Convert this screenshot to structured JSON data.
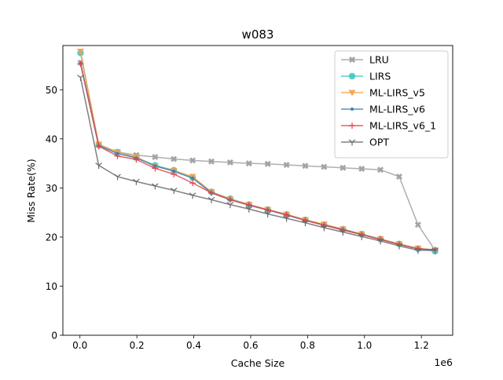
{
  "chart_data": {
    "type": "line",
    "title": "w083",
    "xlabel": "Cache Size",
    "ylabel": "Miss Rate(%)",
    "x_offset_label": "1e6",
    "xlim": [
      -0.06,
      1.31
    ],
    "ylim": [
      0,
      59
    ],
    "xticks": [
      0.0,
      0.2,
      0.4,
      0.6,
      0.8,
      1.0,
      1.2
    ],
    "xtick_labels": [
      "0.0",
      "0.2",
      "0.4",
      "0.6",
      "0.8",
      "1.0",
      "1.2"
    ],
    "yticks": [
      0,
      10,
      20,
      30,
      40,
      50
    ],
    "ytick_labels": [
      "0",
      "10",
      "20",
      "30",
      "40",
      "50"
    ],
    "legend_position": "top-right",
    "x": [
      0.002,
      0.066,
      0.132,
      0.198,
      0.264,
      0.33,
      0.396,
      0.462,
      0.528,
      0.594,
      0.66,
      0.726,
      0.792,
      0.858,
      0.924,
      0.99,
      1.056,
      1.122,
      1.188,
      1.248
    ],
    "series": [
      {
        "name": "LRU",
        "color": "#a0a0a0",
        "marker": "X",
        "values": [
          55.5,
          38.8,
          37.3,
          36.7,
          36.3,
          35.9,
          35.6,
          35.4,
          35.2,
          35.0,
          34.9,
          34.7,
          34.5,
          34.3,
          34.1,
          33.9,
          33.7,
          32.3,
          22.5,
          17.3
        ]
      },
      {
        "name": "LIRS",
        "color": "#3ec9c4",
        "marker": "o",
        "values": [
          57.5,
          38.7,
          37.3,
          36.2,
          34.6,
          33.6,
          32.1,
          29.2,
          27.8,
          26.6,
          25.6,
          24.6,
          23.5,
          22.5,
          21.6,
          20.6,
          19.6,
          18.6,
          17.6,
          17.1
        ]
      },
      {
        "name": "ML-LIRS_v5",
        "color": "#f5a04a",
        "marker": "v",
        "values": [
          57.8,
          38.9,
          37.3,
          36.3,
          34.4,
          33.5,
          32.3,
          29.2,
          27.7,
          26.6,
          25.6,
          24.6,
          23.5,
          22.6,
          21.6,
          20.6,
          19.6,
          18.6,
          17.7,
          17.3
        ]
      },
      {
        "name": "ML-LIRS_v6",
        "color": "#3d7fb5",
        "marker": ".",
        "values": [
          55.4,
          38.6,
          37.0,
          36.1,
          34.5,
          33.4,
          32.0,
          29.0,
          27.6,
          26.5,
          25.5,
          24.5,
          23.4,
          22.4,
          21.5,
          20.5,
          19.5,
          18.5,
          17.6,
          17.4
        ]
      },
      {
        "name": "ML-LIRS_v6_1",
        "color": "#e0454a",
        "marker": "+",
        "values": [
          55.3,
          38.5,
          36.5,
          35.8,
          34.0,
          32.8,
          31.0,
          29.0,
          27.6,
          26.5,
          25.5,
          24.5,
          23.4,
          22.4,
          21.4,
          20.5,
          19.5,
          18.5,
          17.6,
          17.4
        ]
      },
      {
        "name": "OPT",
        "color": "#6a6a6a",
        "marker": "1",
        "values": [
          52.5,
          34.6,
          32.3,
          31.3,
          30.4,
          29.5,
          28.5,
          27.6,
          26.6,
          25.7,
          24.7,
          23.8,
          22.9,
          21.9,
          21.0,
          20.1,
          19.2,
          18.2,
          17.3,
          17.3
        ]
      }
    ]
  }
}
